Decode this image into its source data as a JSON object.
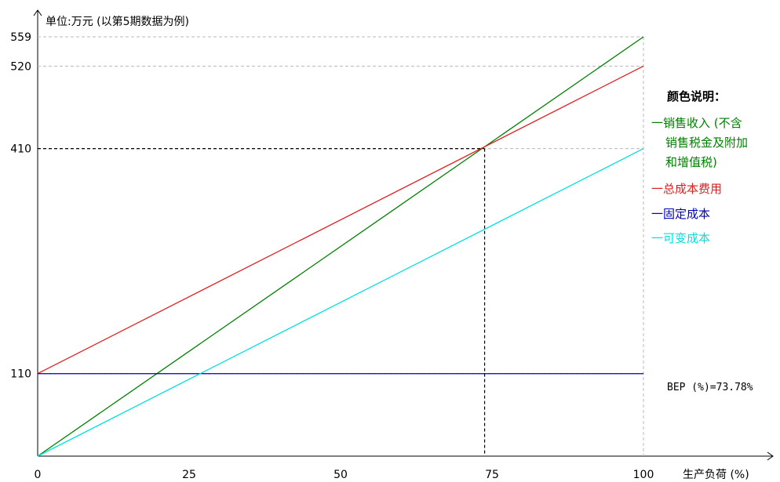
{
  "chart_data": {
    "type": "line",
    "ylabel": "单位:万元 (以第5期数据为例)",
    "xlabel": "生产负荷 (%)",
    "xlim": [
      0,
      100
    ],
    "ylim": [
      0,
      559
    ],
    "x_ticks": [
      "0",
      "25",
      "50",
      "75",
      "100"
    ],
    "y_ticks": [
      "110",
      "410",
      "520",
      "559"
    ],
    "series": [
      {
        "name": "一销售收入 (不含 销售税金及附加 和增值税)",
        "color": "#008000",
        "x": [
          0,
          100
        ],
        "y": [
          0,
          559
        ]
      },
      {
        "name": "一总成本费用",
        "color": "#e02020",
        "x": [
          0,
          100
        ],
        "y": [
          110,
          520
        ]
      },
      {
        "name": "一固定成本",
        "color": "#0000c0",
        "x": [
          0,
          100
        ],
        "y": [
          110,
          110
        ]
      },
      {
        "name": "一可变成本",
        "color": "#00e0e0",
        "x": [
          0,
          100
        ],
        "y": [
          0,
          410
        ]
      }
    ],
    "bep": {
      "x": 73.78,
      "y": 410,
      "label": "BEP (%)=73.78%"
    },
    "legend": {
      "title": "颜色说明：",
      "lines": [
        {
          "text": "一销售收入 (不含",
          "color": "#008000"
        },
        {
          "text": "销售税金及附加",
          "color": "#008000"
        },
        {
          "text": "和增值税)",
          "color": "#008000"
        },
        {
          "text": "一总成本费用",
          "color": "#e02020"
        },
        {
          "text": "一固定成本",
          "color": "#0000c0"
        },
        {
          "text": "一可变成本",
          "color": "#00e0e0"
        }
      ]
    },
    "grid": false
  }
}
